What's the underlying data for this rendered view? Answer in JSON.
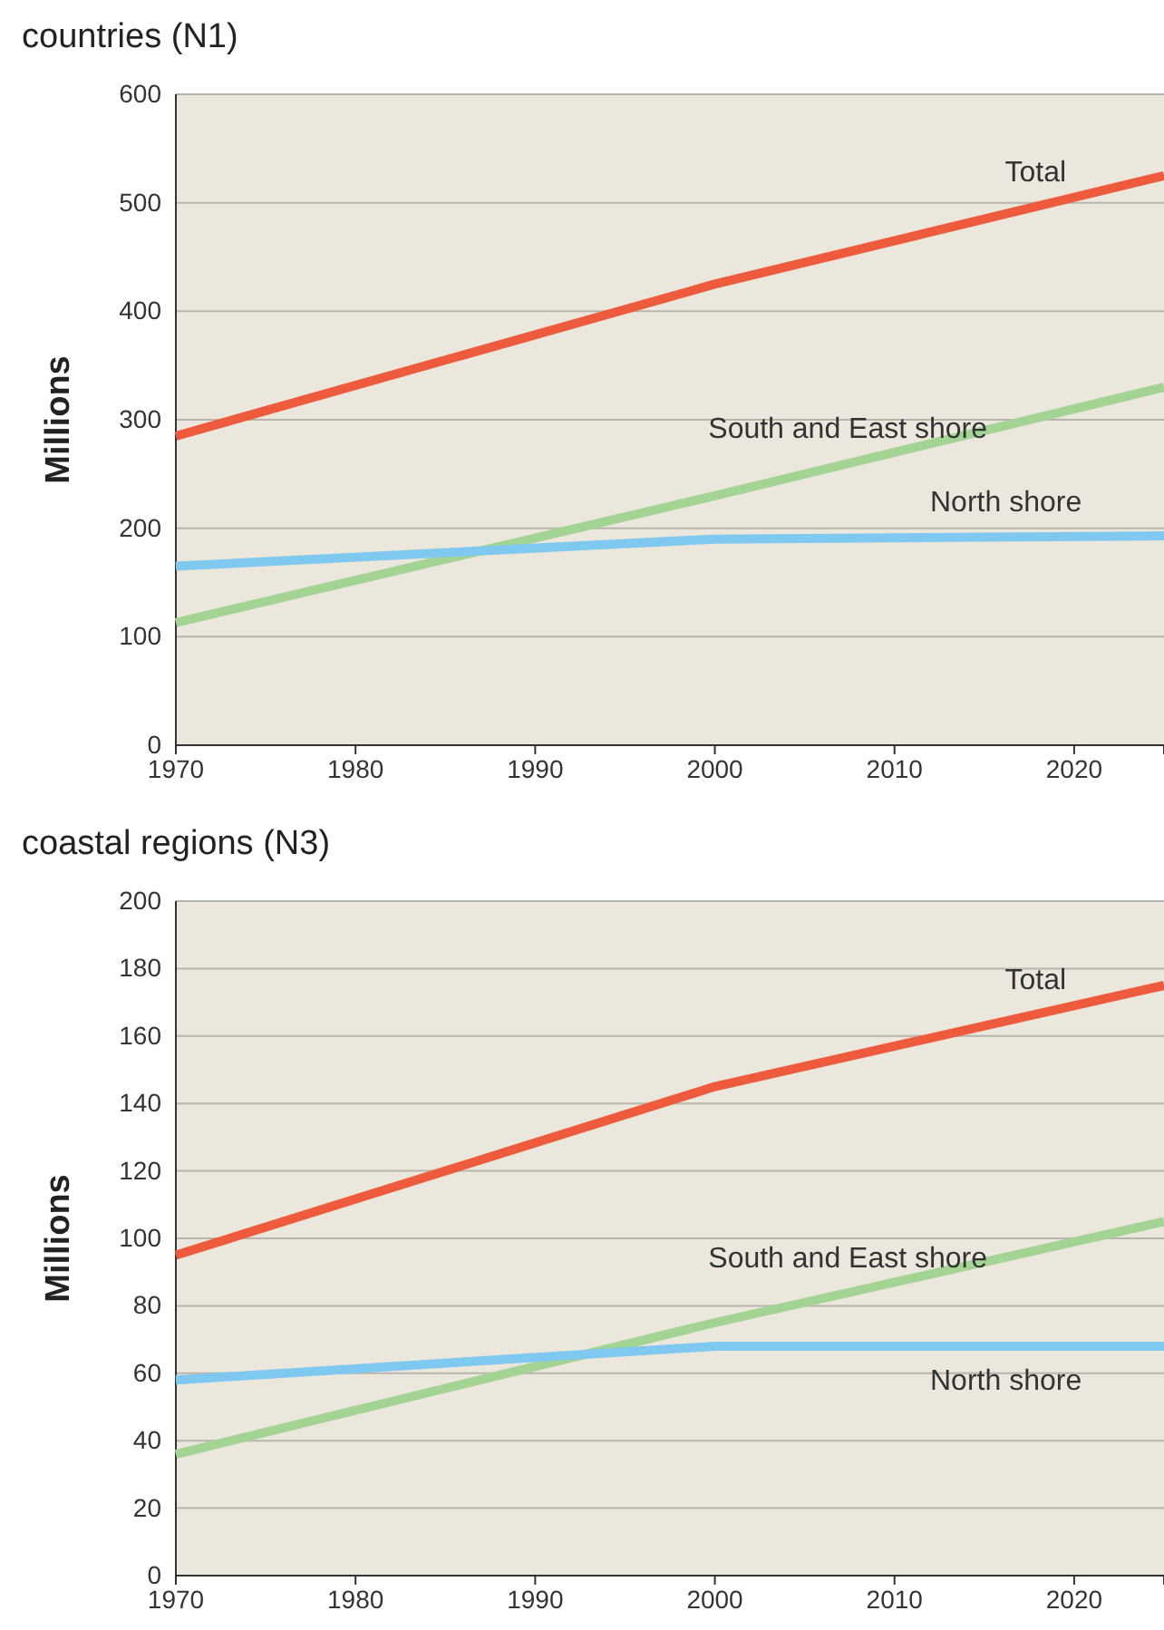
{
  "chart_data": [
    {
      "type": "line",
      "title": "countries (N1)",
      "ylabel": "Millions",
      "x": [
        1970,
        2000,
        2025
      ],
      "xlim": [
        1970,
        2025
      ],
      "xticks": [
        1970,
        1980,
        1990,
        2000,
        2010,
        2020
      ],
      "ylim": [
        0,
        600
      ],
      "yticks": [
        0,
        100,
        200,
        300,
        400,
        500,
        600
      ],
      "grid": "y",
      "series": [
        {
          "name": "Total",
          "color": "#ee5a3c",
          "values": [
            285,
            425,
            525
          ]
        },
        {
          "name": "South and East shore",
          "color": "#a3d494",
          "values": [
            113,
            230,
            330
          ]
        },
        {
          "name": "North shore",
          "color": "#7fc8ef",
          "values": [
            165,
            190,
            193
          ]
        }
      ]
    },
    {
      "type": "line",
      "title": "coastal regions (N3)",
      "ylabel": "Millions",
      "x": [
        1970,
        2000,
        2025
      ],
      "xlim": [
        1970,
        2025
      ],
      "xticks": [
        1970,
        1980,
        1990,
        2000,
        2010,
        2020
      ],
      "ylim": [
        0,
        200
      ],
      "yticks": [
        0,
        20,
        40,
        60,
        80,
        100,
        120,
        140,
        160,
        180,
        200
      ],
      "grid": "y",
      "series": [
        {
          "name": "Total",
          "color": "#ee5a3c",
          "values": [
            95,
            145,
            175
          ]
        },
        {
          "name": "South and East shore",
          "color": "#a3d494",
          "values": [
            36,
            75,
            105
          ]
        },
        {
          "name": "North shore",
          "color": "#7fc8ef",
          "values": [
            58,
            68,
            68
          ]
        }
      ]
    }
  ]
}
